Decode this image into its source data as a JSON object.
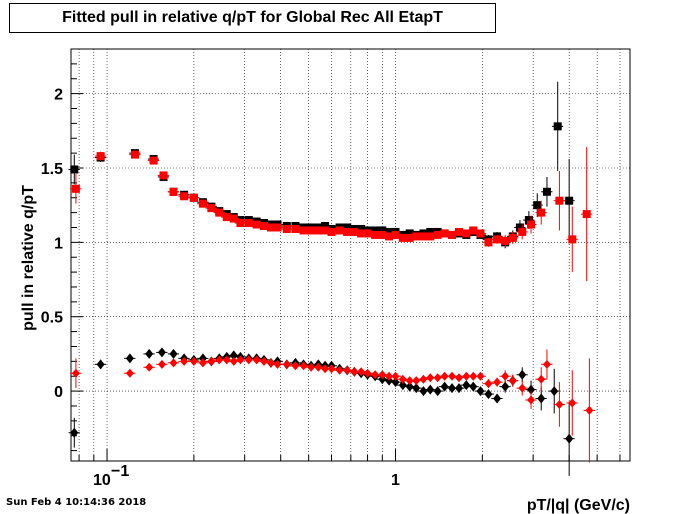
{
  "title": "Fitted pull in relative q/pT for Global Rec All EtapT",
  "footer_timestamp": "Sun Feb  4 10:14:36 2018",
  "chart_data": {
    "type": "scatter",
    "title": "Fitted pull in relative q/pT for Global Rec All EtapT",
    "xlabel": "pT/|q| (GeV/c)",
    "ylabel": "pull in relative q/pT",
    "x_scale": "log",
    "xlim": [
      0.075,
      6.5
    ],
    "ylim": [
      -0.47,
      2.3
    ],
    "grid": true,
    "y_ticks": [
      "0",
      "0.5",
      "1",
      "1.5",
      "2"
    ],
    "x_tick_labels": [
      "10^-1",
      "1"
    ],
    "colors": {
      "black": "#000000",
      "red": "#ff0000"
    },
    "series": [
      {
        "marker": "square",
        "color": "#000000",
        "points": [
          [
            0.077,
            1.49,
            0.1
          ],
          [
            0.095,
            1.57,
            0.03
          ],
          [
            0.125,
            1.6,
            0.02
          ],
          [
            0.145,
            1.56,
            0.02
          ],
          [
            0.157,
            1.44,
            0.02
          ],
          [
            0.17,
            1.34,
            0.01
          ],
          [
            0.185,
            1.32,
            0.01
          ],
          [
            0.2,
            1.3,
            0.01
          ],
          [
            0.215,
            1.27,
            0.01
          ],
          [
            0.23,
            1.24,
            0.01
          ],
          [
            0.245,
            1.21,
            0.01
          ],
          [
            0.26,
            1.19,
            0.01
          ],
          [
            0.275,
            1.17,
            0.01
          ],
          [
            0.29,
            1.15,
            0.01
          ],
          [
            0.31,
            1.15,
            0.01
          ],
          [
            0.33,
            1.14,
            0.01
          ],
          [
            0.35,
            1.13,
            0.01
          ],
          [
            0.37,
            1.12,
            0.01
          ],
          [
            0.39,
            1.12,
            0.01
          ],
          [
            0.42,
            1.11,
            0.01
          ],
          [
            0.45,
            1.11,
            0.01
          ],
          [
            0.48,
            1.1,
            0.01
          ],
          [
            0.51,
            1.1,
            0.01
          ],
          [
            0.54,
            1.1,
            0.01
          ],
          [
            0.57,
            1.11,
            0.01
          ],
          [
            0.6,
            1.09,
            0.01
          ],
          [
            0.64,
            1.1,
            0.01
          ],
          [
            0.68,
            1.1,
            0.01
          ],
          [
            0.72,
            1.09,
            0.01
          ],
          [
            0.76,
            1.09,
            0.01
          ],
          [
            0.8,
            1.08,
            0.01
          ],
          [
            0.85,
            1.08,
            0.01
          ],
          [
            0.9,
            1.08,
            0.01
          ],
          [
            0.95,
            1.07,
            0.01
          ],
          [
            1.0,
            1.07,
            0.01
          ],
          [
            1.06,
            1.05,
            0.01
          ],
          [
            1.12,
            1.06,
            0.01
          ],
          [
            1.18,
            1.05,
            0.01
          ],
          [
            1.25,
            1.06,
            0.02
          ],
          [
            1.32,
            1.07,
            0.02
          ],
          [
            1.4,
            1.07,
            0.02
          ],
          [
            1.48,
            1.06,
            0.02
          ],
          [
            1.57,
            1.05,
            0.02
          ],
          [
            1.66,
            1.06,
            0.02
          ],
          [
            1.76,
            1.05,
            0.02
          ],
          [
            1.86,
            1.07,
            0.02
          ],
          [
            1.97,
            1.05,
            0.02
          ],
          [
            2.1,
            1.02,
            0.03
          ],
          [
            2.25,
            1.04,
            0.03
          ],
          [
            2.4,
            1.0,
            0.04
          ],
          [
            2.55,
            1.04,
            0.04
          ],
          [
            2.7,
            1.1,
            0.05
          ],
          [
            2.9,
            1.15,
            0.06
          ],
          [
            3.1,
            1.25,
            0.08
          ],
          [
            3.35,
            1.34,
            0.1
          ],
          [
            3.65,
            1.78,
            0.3
          ],
          [
            4.0,
            1.28,
            0.28
          ]
        ]
      },
      {
        "marker": "square",
        "color": "#ff0000",
        "points": [
          [
            0.078,
            1.36,
            0.1
          ],
          [
            0.095,
            1.58,
            0.03
          ],
          [
            0.125,
            1.59,
            0.02
          ],
          [
            0.145,
            1.55,
            0.02
          ],
          [
            0.157,
            1.45,
            0.02
          ],
          [
            0.17,
            1.34,
            0.01
          ],
          [
            0.185,
            1.31,
            0.01
          ],
          [
            0.2,
            1.3,
            0.01
          ],
          [
            0.215,
            1.26,
            0.01
          ],
          [
            0.23,
            1.23,
            0.01
          ],
          [
            0.245,
            1.2,
            0.01
          ],
          [
            0.26,
            1.17,
            0.01
          ],
          [
            0.275,
            1.16,
            0.01
          ],
          [
            0.29,
            1.13,
            0.01
          ],
          [
            0.31,
            1.13,
            0.01
          ],
          [
            0.33,
            1.12,
            0.01
          ],
          [
            0.35,
            1.11,
            0.01
          ],
          [
            0.37,
            1.1,
            0.01
          ],
          [
            0.39,
            1.1,
            0.01
          ],
          [
            0.42,
            1.09,
            0.01
          ],
          [
            0.45,
            1.09,
            0.01
          ],
          [
            0.48,
            1.08,
            0.01
          ],
          [
            0.51,
            1.08,
            0.01
          ],
          [
            0.54,
            1.08,
            0.01
          ],
          [
            0.57,
            1.08,
            0.01
          ],
          [
            0.6,
            1.07,
            0.01
          ],
          [
            0.64,
            1.08,
            0.01
          ],
          [
            0.68,
            1.07,
            0.01
          ],
          [
            0.72,
            1.07,
            0.01
          ],
          [
            0.76,
            1.06,
            0.01
          ],
          [
            0.8,
            1.06,
            0.01
          ],
          [
            0.85,
            1.05,
            0.01
          ],
          [
            0.9,
            1.05,
            0.01
          ],
          [
            0.95,
            1.04,
            0.01
          ],
          [
            1.0,
            1.05,
            0.01
          ],
          [
            1.06,
            1.03,
            0.01
          ],
          [
            1.12,
            1.03,
            0.01
          ],
          [
            1.18,
            1.04,
            0.01
          ],
          [
            1.25,
            1.04,
            0.02
          ],
          [
            1.32,
            1.04,
            0.02
          ],
          [
            1.4,
            1.05,
            0.02
          ],
          [
            1.48,
            1.06,
            0.02
          ],
          [
            1.57,
            1.05,
            0.02
          ],
          [
            1.66,
            1.07,
            0.02
          ],
          [
            1.76,
            1.06,
            0.02
          ],
          [
            1.86,
            1.08,
            0.02
          ],
          [
            1.97,
            1.06,
            0.02
          ],
          [
            2.1,
            1.0,
            0.03
          ],
          [
            2.25,
            1.02,
            0.03
          ],
          [
            2.4,
            1.01,
            0.04
          ],
          [
            2.55,
            1.03,
            0.04
          ],
          [
            2.75,
            1.07,
            0.05
          ],
          [
            2.95,
            1.12,
            0.06
          ],
          [
            3.2,
            1.2,
            0.08
          ],
          [
            3.7,
            1.28,
            0.2
          ],
          [
            4.1,
            1.02,
            0.22
          ],
          [
            4.6,
            1.19,
            0.45
          ]
        ]
      },
      {
        "marker": "diamond",
        "color": "#000000",
        "points": [
          [
            0.077,
            -0.28,
            0.1
          ],
          [
            0.095,
            0.18,
            0.03
          ],
          [
            0.12,
            0.22,
            0.02
          ],
          [
            0.14,
            0.25,
            0.02
          ],
          [
            0.155,
            0.26,
            0.02
          ],
          [
            0.17,
            0.25,
            0.01
          ],
          [
            0.185,
            0.22,
            0.01
          ],
          [
            0.2,
            0.21,
            0.01
          ],
          [
            0.215,
            0.22,
            0.01
          ],
          [
            0.23,
            0.2,
            0.01
          ],
          [
            0.245,
            0.22,
            0.01
          ],
          [
            0.26,
            0.23,
            0.01
          ],
          [
            0.275,
            0.24,
            0.01
          ],
          [
            0.29,
            0.23,
            0.01
          ],
          [
            0.31,
            0.22,
            0.01
          ],
          [
            0.33,
            0.22,
            0.01
          ],
          [
            0.35,
            0.21,
            0.01
          ],
          [
            0.37,
            0.19,
            0.01
          ],
          [
            0.39,
            0.2,
            0.01
          ],
          [
            0.42,
            0.18,
            0.01
          ],
          [
            0.45,
            0.19,
            0.01
          ],
          [
            0.48,
            0.18,
            0.01
          ],
          [
            0.51,
            0.17,
            0.01
          ],
          [
            0.54,
            0.18,
            0.01
          ],
          [
            0.57,
            0.17,
            0.01
          ],
          [
            0.6,
            0.17,
            0.01
          ],
          [
            0.64,
            0.15,
            0.01
          ],
          [
            0.68,
            0.14,
            0.01
          ],
          [
            0.72,
            0.13,
            0.01
          ],
          [
            0.76,
            0.12,
            0.01
          ],
          [
            0.8,
            0.11,
            0.01
          ],
          [
            0.85,
            0.1,
            0.01
          ],
          [
            0.9,
            0.08,
            0.01
          ],
          [
            0.95,
            0.07,
            0.01
          ],
          [
            1.0,
            0.06,
            0.01
          ],
          [
            1.06,
            0.04,
            0.01
          ],
          [
            1.12,
            0.03,
            0.01
          ],
          [
            1.18,
            0.02,
            0.01
          ],
          [
            1.25,
            0.0,
            0.02
          ],
          [
            1.32,
            0.01,
            0.02
          ],
          [
            1.4,
            0.0,
            0.02
          ],
          [
            1.48,
            0.03,
            0.02
          ],
          [
            1.57,
            0.02,
            0.02
          ],
          [
            1.66,
            0.02,
            0.02
          ],
          [
            1.76,
            0.04,
            0.02
          ],
          [
            1.86,
            0.03,
            0.02
          ],
          [
            1.97,
            0.0,
            0.02
          ],
          [
            2.1,
            -0.02,
            0.03
          ],
          [
            2.25,
            -0.05,
            0.03
          ],
          [
            2.4,
            0.03,
            0.04
          ],
          [
            2.55,
            0.07,
            0.04
          ],
          [
            2.75,
            0.11,
            0.05
          ],
          [
            2.95,
            0.01,
            0.06
          ],
          [
            3.2,
            -0.05,
            0.08
          ],
          [
            3.55,
            0.0,
            0.15
          ],
          [
            4.0,
            -0.32,
            0.25
          ]
        ]
      },
      {
        "marker": "circle",
        "color": "#ff0000",
        "points": [
          [
            0.078,
            0.12,
            0.1
          ],
          [
            0.12,
            0.12,
            0.02
          ],
          [
            0.14,
            0.16,
            0.02
          ],
          [
            0.155,
            0.18,
            0.02
          ],
          [
            0.17,
            0.19,
            0.01
          ],
          [
            0.185,
            0.2,
            0.01
          ],
          [
            0.2,
            0.2,
            0.01
          ],
          [
            0.215,
            0.19,
            0.01
          ],
          [
            0.23,
            0.2,
            0.01
          ],
          [
            0.245,
            0.21,
            0.01
          ],
          [
            0.26,
            0.21,
            0.01
          ],
          [
            0.275,
            0.2,
            0.01
          ],
          [
            0.29,
            0.21,
            0.01
          ],
          [
            0.31,
            0.21,
            0.01
          ],
          [
            0.33,
            0.21,
            0.01
          ],
          [
            0.35,
            0.2,
            0.01
          ],
          [
            0.37,
            0.19,
            0.01
          ],
          [
            0.39,
            0.18,
            0.01
          ],
          [
            0.42,
            0.18,
            0.01
          ],
          [
            0.45,
            0.17,
            0.01
          ],
          [
            0.48,
            0.17,
            0.01
          ],
          [
            0.51,
            0.16,
            0.01
          ],
          [
            0.54,
            0.16,
            0.01
          ],
          [
            0.57,
            0.15,
            0.01
          ],
          [
            0.6,
            0.15,
            0.01
          ],
          [
            0.64,
            0.14,
            0.01
          ],
          [
            0.68,
            0.14,
            0.01
          ],
          [
            0.72,
            0.13,
            0.01
          ],
          [
            0.76,
            0.13,
            0.01
          ],
          [
            0.8,
            0.12,
            0.01
          ],
          [
            0.85,
            0.11,
            0.01
          ],
          [
            0.9,
            0.11,
            0.01
          ],
          [
            0.95,
            0.1,
            0.01
          ],
          [
            1.0,
            0.1,
            0.01
          ],
          [
            1.06,
            0.08,
            0.01
          ],
          [
            1.12,
            0.07,
            0.01
          ],
          [
            1.18,
            0.07,
            0.01
          ],
          [
            1.25,
            0.08,
            0.02
          ],
          [
            1.32,
            0.09,
            0.02
          ],
          [
            1.4,
            0.09,
            0.02
          ],
          [
            1.48,
            0.1,
            0.02
          ],
          [
            1.57,
            0.1,
            0.02
          ],
          [
            1.66,
            0.09,
            0.02
          ],
          [
            1.76,
            0.1,
            0.02
          ],
          [
            1.86,
            0.1,
            0.02
          ],
          [
            1.97,
            0.1,
            0.02
          ],
          [
            2.1,
            0.05,
            0.03
          ],
          [
            2.25,
            0.06,
            0.03
          ],
          [
            2.4,
            0.1,
            0.04
          ],
          [
            2.55,
            0.07,
            0.04
          ],
          [
            2.75,
            0.02,
            0.05
          ],
          [
            2.95,
            -0.06,
            0.06
          ],
          [
            3.2,
            0.08,
            0.08
          ],
          [
            3.35,
            0.18,
            0.1
          ],
          [
            3.7,
            -0.09,
            0.15
          ],
          [
            4.1,
            -0.08,
            0.22
          ],
          [
            4.7,
            -0.13,
            0.35
          ]
        ]
      }
    ]
  }
}
